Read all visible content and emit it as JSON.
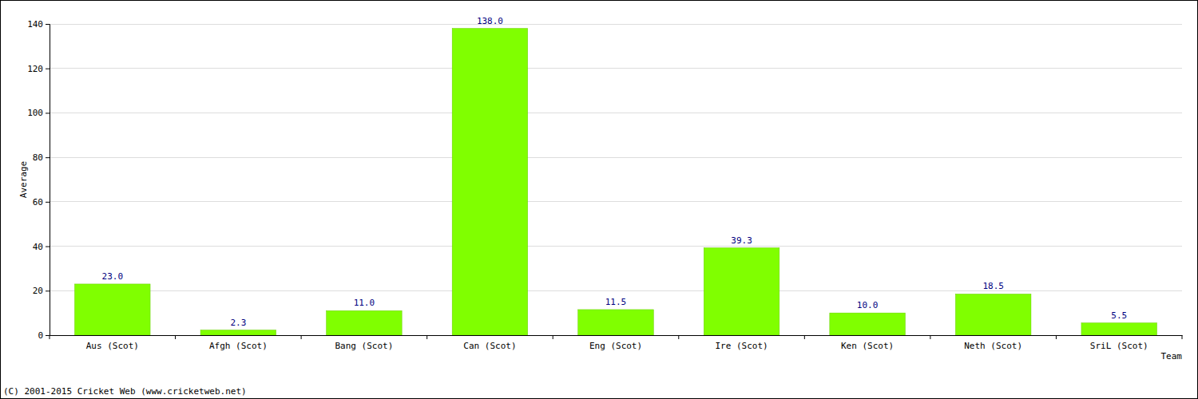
{
  "chart_data": {
    "type": "bar",
    "x_label": "Team",
    "y_label": "Average",
    "annotations": [
      "(C) 2001-2015 Cricket Web (www.cricketweb.net)"
    ],
    "categories": [
      "Aus (Scot)",
      "Afgh (Scot)",
      "Bang (Scot)",
      "Can (Scot)",
      "Eng (Scot)",
      "Ire (Scot)",
      "Ken (Scot)",
      "Neth (Scot)",
      "SriL (Scot)"
    ],
    "values": [
      23,
      2.3,
      11,
      138,
      11.5,
      39.3,
      10,
      18.5,
      5.5
    ],
    "value_labels": [
      "23.0",
      "2.3",
      "11.0",
      "138.0",
      "11.5",
      "39.3",
      "10.0",
      "18.5",
      "5.5"
    ],
    "color": "#80ff00",
    "ylim": [
      0,
      140
    ],
    "yticks": [
      0,
      20,
      40,
      60,
      80,
      100,
      120,
      140
    ],
    "grid": true,
    "data_labels": true
  }
}
